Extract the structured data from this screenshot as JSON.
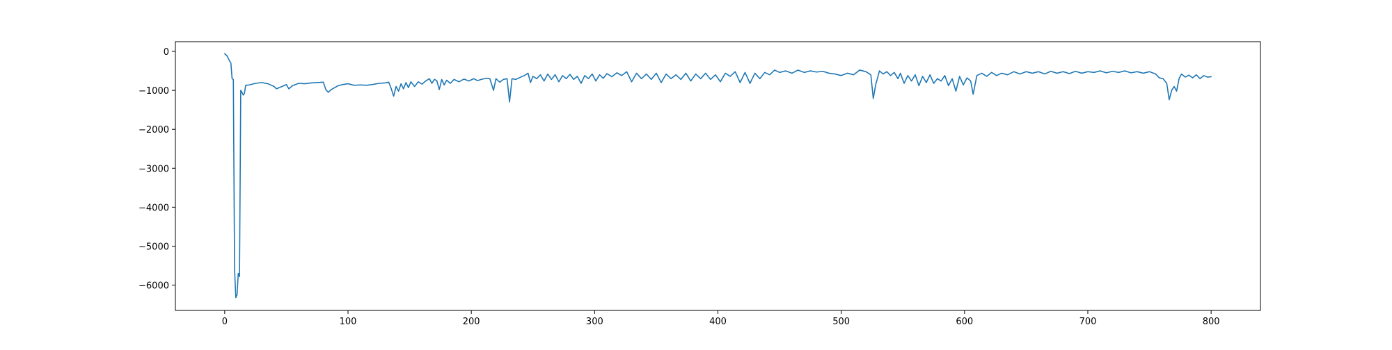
{
  "chart_data": {
    "type": "line",
    "title": "",
    "xlabel": "",
    "ylabel": "",
    "xlim": [
      -40,
      840
    ],
    "ylim": [
      -6650,
      250
    ],
    "x_ticks": [
      0,
      100,
      200,
      300,
      400,
      500,
      600,
      700,
      800
    ],
    "x_tick_labels": [
      "0",
      "100",
      "200",
      "300",
      "400",
      "500",
      "600",
      "700",
      "800"
    ],
    "y_ticks": [
      0,
      -1000,
      -2000,
      -3000,
      -4000,
      -5000,
      -6000
    ],
    "y_tick_labels": [
      "0",
      "−1000",
      "−2000",
      "−3000",
      "−4000",
      "−5000",
      "−6000"
    ],
    "grid": false,
    "legend": "none",
    "line_color": "#1f77b4",
    "series": [
      {
        "points": [
          [
            0,
            -60
          ],
          [
            2,
            -120
          ],
          [
            4,
            -250
          ],
          [
            5,
            -300
          ],
          [
            6,
            -700
          ],
          [
            7,
            -720
          ],
          [
            8,
            -5600
          ],
          [
            9,
            -6320
          ],
          [
            10,
            -6250
          ],
          [
            11,
            -5700
          ],
          [
            12,
            -5780
          ],
          [
            13,
            -1000
          ],
          [
            14,
            -1050
          ],
          [
            15,
            -1120
          ],
          [
            16,
            -1080
          ],
          [
            17,
            -870
          ],
          [
            20,
            -860
          ],
          [
            25,
            -820
          ],
          [
            30,
            -800
          ],
          [
            35,
            -830
          ],
          [
            40,
            -900
          ],
          [
            42,
            -960
          ],
          [
            45,
            -920
          ],
          [
            48,
            -880
          ],
          [
            50,
            -850
          ],
          [
            52,
            -960
          ],
          [
            55,
            -880
          ],
          [
            60,
            -820
          ],
          [
            65,
            -830
          ],
          [
            70,
            -810
          ],
          [
            75,
            -800
          ],
          [
            80,
            -790
          ],
          [
            82,
            -980
          ],
          [
            84,
            -1050
          ],
          [
            86,
            -990
          ],
          [
            88,
            -950
          ],
          [
            92,
            -880
          ],
          [
            96,
            -850
          ],
          [
            100,
            -830
          ],
          [
            105,
            -870
          ],
          [
            110,
            -860
          ],
          [
            115,
            -870
          ],
          [
            120,
            -850
          ],
          [
            125,
            -820
          ],
          [
            130,
            -810
          ],
          [
            133,
            -790
          ],
          [
            135,
            -950
          ],
          [
            137,
            -1150
          ],
          [
            139,
            -900
          ],
          [
            141,
            -1020
          ],
          [
            143,
            -830
          ],
          [
            145,
            -960
          ],
          [
            147,
            -800
          ],
          [
            149,
            -930
          ],
          [
            151,
            -780
          ],
          [
            154,
            -900
          ],
          [
            157,
            -780
          ],
          [
            160,
            -840
          ],
          [
            163,
            -760
          ],
          [
            166,
            -700
          ],
          [
            168,
            -820
          ],
          [
            170,
            -720
          ],
          [
            172,
            -750
          ],
          [
            174,
            -980
          ],
          [
            176,
            -720
          ],
          [
            178,
            -860
          ],
          [
            180,
            -740
          ],
          [
            183,
            -820
          ],
          [
            186,
            -720
          ],
          [
            190,
            -780
          ],
          [
            194,
            -710
          ],
          [
            198,
            -760
          ],
          [
            202,
            -700
          ],
          [
            205,
            -750
          ],
          [
            208,
            -720
          ],
          [
            212,
            -690
          ],
          [
            215,
            -700
          ],
          [
            218,
            -1000
          ],
          [
            220,
            -700
          ],
          [
            223,
            -790
          ],
          [
            226,
            -720
          ],
          [
            229,
            -700
          ],
          [
            231,
            -1300
          ],
          [
            233,
            -700
          ],
          [
            236,
            -720
          ],
          [
            240,
            -660
          ],
          [
            243,
            -620
          ],
          [
            246,
            -560
          ],
          [
            248,
            -800
          ],
          [
            250,
            -640
          ],
          [
            253,
            -700
          ],
          [
            256,
            -600
          ],
          [
            259,
            -760
          ],
          [
            262,
            -580
          ],
          [
            265,
            -720
          ],
          [
            268,
            -600
          ],
          [
            271,
            -780
          ],
          [
            274,
            -620
          ],
          [
            277,
            -700
          ],
          [
            280,
            -590
          ],
          [
            283,
            -720
          ],
          [
            286,
            -640
          ],
          [
            289,
            -820
          ],
          [
            292,
            -620
          ],
          [
            295,
            -700
          ],
          [
            298,
            -580
          ],
          [
            301,
            -760
          ],
          [
            304,
            -600
          ],
          [
            307,
            -690
          ],
          [
            310,
            -570
          ],
          [
            314,
            -650
          ],
          [
            318,
            -550
          ],
          [
            322,
            -620
          ],
          [
            326,
            -520
          ],
          [
            330,
            -780
          ],
          [
            334,
            -560
          ],
          [
            338,
            -700
          ],
          [
            342,
            -580
          ],
          [
            346,
            -720
          ],
          [
            350,
            -560
          ],
          [
            354,
            -800
          ],
          [
            358,
            -580
          ],
          [
            362,
            -700
          ],
          [
            366,
            -600
          ],
          [
            370,
            -720
          ],
          [
            374,
            -560
          ],
          [
            378,
            -760
          ],
          [
            382,
            -580
          ],
          [
            386,
            -700
          ],
          [
            390,
            -560
          ],
          [
            394,
            -720
          ],
          [
            398,
            -600
          ],
          [
            402,
            -780
          ],
          [
            406,
            -560
          ],
          [
            410,
            -640
          ],
          [
            414,
            -520
          ],
          [
            418,
            -800
          ],
          [
            422,
            -540
          ],
          [
            426,
            -820
          ],
          [
            430,
            -560
          ],
          [
            434,
            -700
          ],
          [
            438,
            -540
          ],
          [
            442,
            -600
          ],
          [
            446,
            -480
          ],
          [
            450,
            -540
          ],
          [
            455,
            -500
          ],
          [
            460,
            -560
          ],
          [
            465,
            -480
          ],
          [
            470,
            -540
          ],
          [
            475,
            -500
          ],
          [
            480,
            -530
          ],
          [
            485,
            -510
          ],
          [
            490,
            -560
          ],
          [
            495,
            -580
          ],
          [
            500,
            -620
          ],
          [
            505,
            -560
          ],
          [
            510,
            -600
          ],
          [
            515,
            -480
          ],
          [
            520,
            -520
          ],
          [
            524,
            -600
          ],
          [
            526,
            -1210
          ],
          [
            528,
            -850
          ],
          [
            531,
            -500
          ],
          [
            534,
            -580
          ],
          [
            537,
            -520
          ],
          [
            540,
            -620
          ],
          [
            543,
            -540
          ],
          [
            546,
            -700
          ],
          [
            548,
            -560
          ],
          [
            551,
            -820
          ],
          [
            554,
            -620
          ],
          [
            557,
            -760
          ],
          [
            560,
            -600
          ],
          [
            563,
            -880
          ],
          [
            566,
            -640
          ],
          [
            569,
            -800
          ],
          [
            572,
            -600
          ],
          [
            575,
            -820
          ],
          [
            578,
            -700
          ],
          [
            581,
            -760
          ],
          [
            584,
            -620
          ],
          [
            587,
            -880
          ],
          [
            590,
            -700
          ],
          [
            593,
            -1020
          ],
          [
            596,
            -640
          ],
          [
            599,
            -860
          ],
          [
            602,
            -680
          ],
          [
            605,
            -760
          ],
          [
            607,
            -1100
          ],
          [
            610,
            -620
          ],
          [
            614,
            -560
          ],
          [
            618,
            -640
          ],
          [
            622,
            -540
          ],
          [
            626,
            -620
          ],
          [
            630,
            -560
          ],
          [
            635,
            -600
          ],
          [
            640,
            -520
          ],
          [
            645,
            -580
          ],
          [
            650,
            -520
          ],
          [
            655,
            -560
          ],
          [
            660,
            -520
          ],
          [
            665,
            -580
          ],
          [
            670,
            -510
          ],
          [
            675,
            -560
          ],
          [
            680,
            -520
          ],
          [
            685,
            -570
          ],
          [
            690,
            -510
          ],
          [
            695,
            -560
          ],
          [
            700,
            -520
          ],
          [
            705,
            -540
          ],
          [
            710,
            -500
          ],
          [
            715,
            -550
          ],
          [
            720,
            -510
          ],
          [
            725,
            -540
          ],
          [
            730,
            -500
          ],
          [
            735,
            -550
          ],
          [
            740,
            -520
          ],
          [
            745,
            -560
          ],
          [
            750,
            -520
          ],
          [
            755,
            -580
          ],
          [
            758,
            -680
          ],
          [
            761,
            -700
          ],
          [
            764,
            -820
          ],
          [
            766,
            -1240
          ],
          [
            768,
            -1000
          ],
          [
            770,
            -900
          ],
          [
            772,
            -1020
          ],
          [
            774,
            -700
          ],
          [
            776,
            -580
          ],
          [
            779,
            -660
          ],
          [
            782,
            -610
          ],
          [
            785,
            -680
          ],
          [
            788,
            -600
          ],
          [
            791,
            -700
          ],
          [
            794,
            -620
          ],
          [
            797,
            -660
          ],
          [
            800,
            -650
          ]
        ]
      }
    ]
  }
}
